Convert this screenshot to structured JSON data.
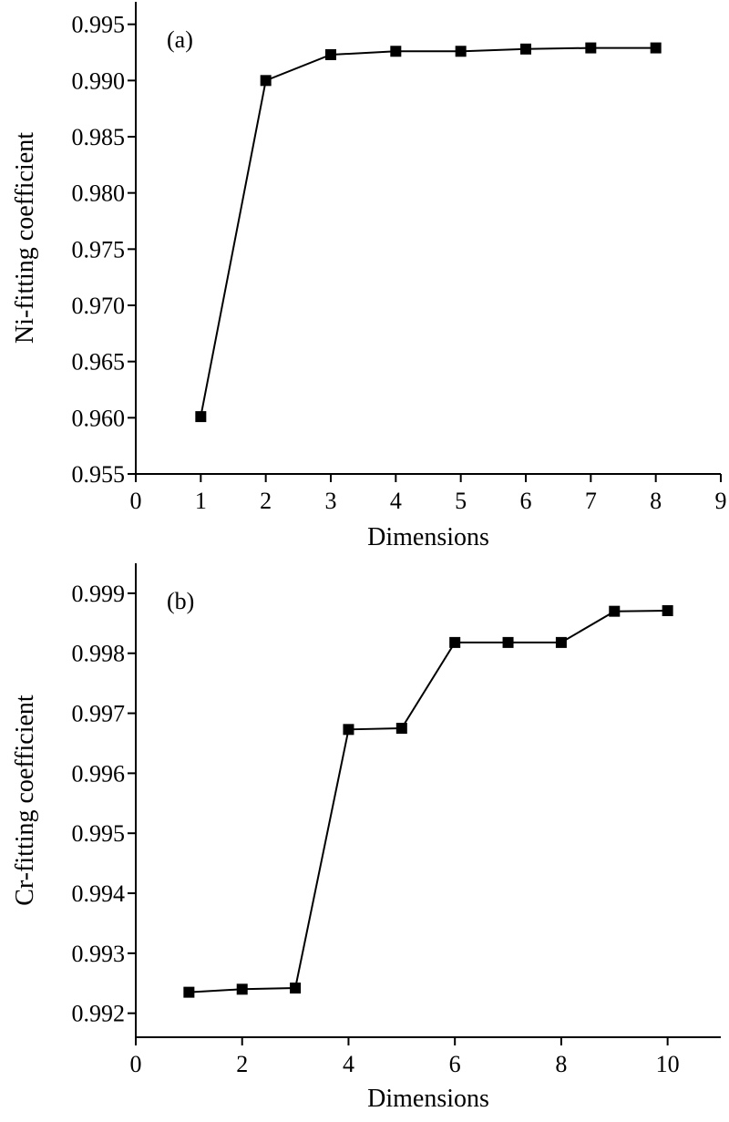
{
  "chart_data": [
    {
      "type": "line",
      "panel_label": "(a)",
      "xlabel": "Dimensions",
      "ylabel": "Ni-fitting coefficient",
      "xlim": [
        0,
        9
      ],
      "ylim": [
        0.955,
        0.997
      ],
      "xticks": [
        0,
        1,
        2,
        3,
        4,
        5,
        6,
        7,
        8,
        9
      ],
      "yticks": [
        0.955,
        0.96,
        0.965,
        0.97,
        0.975,
        0.98,
        0.985,
        0.99,
        0.995
      ],
      "xtick_labels": [
        "0",
        "1",
        "2",
        "3",
        "4",
        "5",
        "6",
        "7",
        "8",
        "9"
      ],
      "ytick_labels": [
        "0.955",
        "0.960",
        "0.965",
        "0.970",
        "0.975",
        "0.980",
        "0.985",
        "0.990",
        "0.995"
      ],
      "grid": false,
      "marker": "square",
      "series": [
        {
          "x": [
            1,
            2,
            3,
            4,
            5,
            6,
            7,
            8
          ],
          "y": [
            0.9601,
            0.99,
            0.9923,
            0.9926,
            0.9926,
            0.9928,
            0.9929,
            0.9929
          ]
        }
      ]
    },
    {
      "type": "line",
      "panel_label": "(b)",
      "xlabel": "Dimensions",
      "ylabel": "Cr-fitting coefficient",
      "xlim": [
        0,
        11
      ],
      "ylim": [
        0.9916,
        0.9995
      ],
      "xticks": [
        0,
        2,
        4,
        6,
        8,
        10
      ],
      "yticks": [
        0.992,
        0.993,
        0.994,
        0.995,
        0.996,
        0.997,
        0.998,
        0.999
      ],
      "xtick_labels": [
        "0",
        "2",
        "4",
        "6",
        "8",
        "10"
      ],
      "ytick_labels": [
        "0.992",
        "0.993",
        "0.994",
        "0.995",
        "0.996",
        "0.997",
        "0.998",
        "0.999"
      ],
      "grid": false,
      "marker": "square",
      "series": [
        {
          "x": [
            1,
            2,
            3,
            4,
            5,
            6,
            7,
            8,
            9,
            10
          ],
          "y": [
            0.99235,
            0.9924,
            0.99242,
            0.99673,
            0.99675,
            0.99818,
            0.99818,
            0.99818,
            0.9987,
            0.99871
          ]
        }
      ]
    }
  ]
}
